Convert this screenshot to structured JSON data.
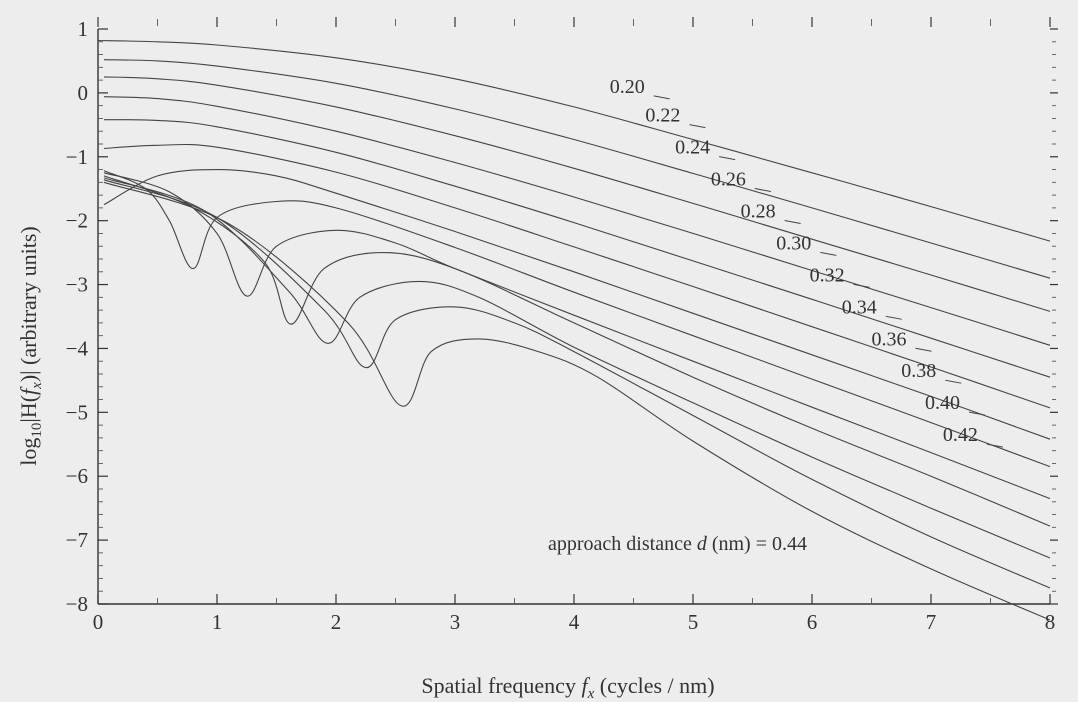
{
  "chart_data": {
    "type": "line",
    "title": "",
    "xlabel_prefix": "Spatial frequency ",
    "xlabel_var": "f",
    "xlabel_sub": "x",
    "xlabel_suffix": " (cycles / nm)",
    "ylabel_log": "log",
    "ylabel_log_sub": "10",
    "ylabel_mid": "|H(",
    "ylabel_var": "f",
    "ylabel_sub": "x",
    "ylabel_suffix": ")| (arbitrary units)",
    "xlim": [
      0,
      8
    ],
    "ylim": [
      -8,
      1
    ],
    "xticks": [
      "0",
      "1",
      "2",
      "3",
      "4",
      "5",
      "6",
      "7",
      "8"
    ],
    "yticks": [
      "1",
      "0",
      "-1",
      "-2",
      "-3",
      "-4",
      "-5",
      "-6",
      "-7",
      "-8"
    ],
    "legend_caption_prefix": "approach distance ",
    "legend_caption_var": "d",
    "legend_caption_suffix": " (nm) = ",
    "series": [
      {
        "name": "0.20",
        "values": [
          [
            0,
            0.82
          ],
          [
            0.5,
            0.8
          ],
          [
            1,
            0.75
          ],
          [
            2,
            0.55
          ],
          [
            3,
            0.22
          ],
          [
            4,
            -0.22
          ],
          [
            5,
            -0.73
          ],
          [
            6,
            -1.25
          ],
          [
            7,
            -1.78
          ],
          [
            8,
            -2.32
          ]
        ]
      },
      {
        "name": "0.22",
        "values": [
          [
            0.05,
            0.52
          ],
          [
            0.5,
            0.5
          ],
          [
            1,
            0.42
          ],
          [
            2,
            0.15
          ],
          [
            3,
            -0.25
          ],
          [
            4,
            -0.73
          ],
          [
            5,
            -1.26
          ],
          [
            6,
            -1.8
          ],
          [
            7,
            -2.35
          ],
          [
            8,
            -2.9
          ]
        ]
      },
      {
        "name": "0.24",
        "values": [
          [
            0.05,
            0.25
          ],
          [
            0.5,
            0.22
          ],
          [
            1,
            0.12
          ],
          [
            2,
            -0.22
          ],
          [
            3,
            -0.67
          ],
          [
            4,
            -1.18
          ],
          [
            5,
            -1.73
          ],
          [
            6,
            -2.29
          ],
          [
            7,
            -2.85
          ],
          [
            8,
            -3.42
          ]
        ]
      },
      {
        "name": "0.26",
        "values": [
          [
            0.05,
            -0.06
          ],
          [
            0.5,
            -0.09
          ],
          [
            1,
            -0.21
          ],
          [
            2,
            -0.6
          ],
          [
            3,
            -1.09
          ],
          [
            4,
            -1.63
          ],
          [
            5,
            -2.2
          ],
          [
            6,
            -2.78
          ],
          [
            7,
            -3.36
          ],
          [
            8,
            -3.95
          ]
        ]
      },
      {
        "name": "0.28",
        "values": [
          [
            0.05,
            -0.42
          ],
          [
            0.5,
            -0.43
          ],
          [
            1,
            -0.53
          ],
          [
            2,
            -0.93
          ],
          [
            3,
            -1.46
          ],
          [
            4,
            -2.03
          ],
          [
            5,
            -2.63
          ],
          [
            6,
            -3.23
          ],
          [
            7,
            -3.84
          ],
          [
            8,
            -4.45
          ]
        ]
      },
      {
        "name": "0.30",
        "values": [
          [
            0.05,
            -0.87
          ],
          [
            0.5,
            -0.82
          ],
          [
            1,
            -0.85
          ],
          [
            2,
            -1.24
          ],
          [
            3,
            -1.8
          ],
          [
            4,
            -2.41
          ],
          [
            5,
            -3.03
          ],
          [
            6,
            -3.66
          ],
          [
            7,
            -4.29
          ],
          [
            8,
            -4.93
          ]
        ]
      },
      {
        "name": "0.32",
        "values": [
          [
            0.05,
            -1.75
          ],
          [
            0.5,
            -1.3
          ],
          [
            1,
            -1.2
          ],
          [
            1.5,
            -1.3
          ],
          [
            2,
            -1.57
          ],
          [
            3,
            -2.17
          ],
          [
            4,
            -2.8
          ],
          [
            5,
            -3.45
          ],
          [
            6,
            -4.1
          ],
          [
            7,
            -4.75
          ],
          [
            8,
            -5.42
          ]
        ]
      },
      {
        "name": "0.34",
        "values": [
          [
            0.05,
            -1.22
          ],
          [
            0.4,
            -1.5
          ],
          [
            0.6,
            -2.0
          ],
          [
            0.8,
            -2.75
          ],
          [
            1.0,
            -1.95
          ],
          [
            1.5,
            -1.7
          ],
          [
            2,
            -1.8
          ],
          [
            3,
            -2.42
          ],
          [
            4,
            -3.12
          ],
          [
            5,
            -3.8
          ],
          [
            6,
            -4.48
          ],
          [
            7,
            -5.16
          ],
          [
            8,
            -5.85
          ]
        ]
      },
      {
        "name": "0.36",
        "values": [
          [
            0.05,
            -1.25
          ],
          [
            0.6,
            -1.55
          ],
          [
            1.0,
            -2.2
          ],
          [
            1.25,
            -3.18
          ],
          [
            1.5,
            -2.4
          ],
          [
            2,
            -2.15
          ],
          [
            2.5,
            -2.35
          ],
          [
            3,
            -2.75
          ],
          [
            4,
            -3.48
          ],
          [
            5,
            -4.2
          ],
          [
            6,
            -4.92
          ],
          [
            7,
            -5.63
          ],
          [
            8,
            -6.35
          ]
        ]
      },
      {
        "name": "0.38",
        "values": [
          [
            0.05,
            -1.3
          ],
          [
            0.8,
            -1.8
          ],
          [
            1.4,
            -2.65
          ],
          [
            1.62,
            -3.62
          ],
          [
            1.9,
            -2.75
          ],
          [
            2.4,
            -2.5
          ],
          [
            3,
            -2.75
          ],
          [
            4,
            -3.6
          ],
          [
            5,
            -4.45
          ],
          [
            6,
            -5.25
          ],
          [
            7,
            -6.0
          ],
          [
            8,
            -6.78
          ]
        ]
      },
      {
        "name": "0.40",
        "values": [
          [
            0.05,
            -1.33
          ],
          [
            0.9,
            -1.85
          ],
          [
            1.6,
            -3.1
          ],
          [
            1.93,
            -3.92
          ],
          [
            2.2,
            -3.2
          ],
          [
            2.7,
            -2.95
          ],
          [
            3.2,
            -3.2
          ],
          [
            4,
            -3.98
          ],
          [
            5,
            -4.85
          ],
          [
            6,
            -5.7
          ],
          [
            7,
            -6.5
          ],
          [
            8,
            -7.28
          ]
        ]
      },
      {
        "name": "0.42",
        "values": [
          [
            0.05,
            -1.36
          ],
          [
            1.0,
            -1.95
          ],
          [
            1.9,
            -3.4
          ],
          [
            2.25,
            -4.3
          ],
          [
            2.5,
            -3.55
          ],
          [
            3,
            -3.35
          ],
          [
            3.5,
            -3.6
          ],
          [
            4,
            -4.05
          ],
          [
            5,
            -5.05
          ],
          [
            6,
            -6.05
          ],
          [
            7,
            -6.95
          ],
          [
            8,
            -7.75
          ]
        ]
      },
      {
        "name": "0.44",
        "values": [
          [
            0.05,
            -1.4
          ],
          [
            1.1,
            -2.05
          ],
          [
            2.1,
            -3.6
          ],
          [
            2.55,
            -4.9
          ],
          [
            2.8,
            -4.05
          ],
          [
            3.2,
            -3.85
          ],
          [
            3.7,
            -4.05
          ],
          [
            4.2,
            -4.45
          ],
          [
            5,
            -5.45
          ],
          [
            6,
            -6.55
          ],
          [
            7,
            -7.45
          ],
          [
            8,
            -8.25
          ]
        ]
      }
    ],
    "label_positions_data": [
      {
        "x": 4.3,
        "y": 0.0
      },
      {
        "x": 4.6,
        "y": -0.45
      },
      {
        "x": 4.85,
        "y": -0.95
      },
      {
        "x": 5.15,
        "y": -1.45
      },
      {
        "x": 5.4,
        "y": -1.95
      },
      {
        "x": 5.7,
        "y": -2.45
      },
      {
        "x": 5.98,
        "y": -2.95
      },
      {
        "x": 6.25,
        "y": -3.45
      },
      {
        "x": 6.5,
        "y": -3.95
      },
      {
        "x": 6.75,
        "y": -4.45
      },
      {
        "x": 6.95,
        "y": -4.95
      },
      {
        "x": 7.1,
        "y": -5.45
      },
      {
        "x": 7.1,
        "y": -6.0
      }
    ],
    "grid": false
  }
}
